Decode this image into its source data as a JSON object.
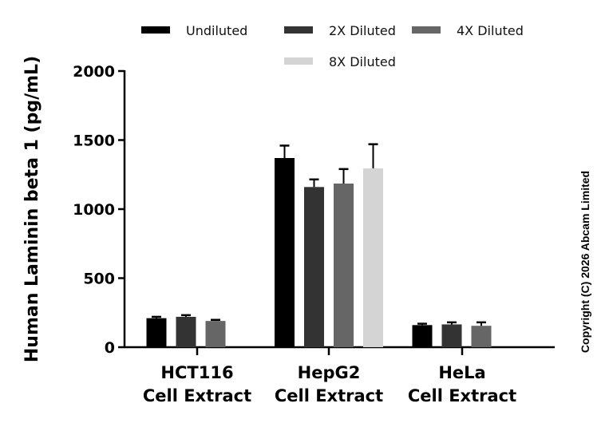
{
  "chart_data": {
    "type": "bar",
    "title": "",
    "xlabel": "",
    "ylabel": "Human Laminin beta 1 (pg/mL)",
    "ylim": [
      0,
      2000
    ],
    "yticks": [
      0,
      500,
      1000,
      1500,
      2000
    ],
    "categories": [
      "HCT116 Cell Extract",
      "HepG2 Cell Extract",
      "HeLa Cell Extract"
    ],
    "category_lines": [
      [
        "HCT116",
        "Cell Extract"
      ],
      [
        "HepG2",
        "Cell Extract"
      ],
      [
        "HeLa",
        "Cell Extract"
      ]
    ],
    "series": [
      {
        "name": "Undiluted",
        "color": "#000000",
        "values": [
          210,
          1370,
          160
        ],
        "errors": [
          10,
          90,
          10
        ]
      },
      {
        "name": "2X Diluted",
        "color": "#333333",
        "values": [
          220,
          1160,
          165
        ],
        "errors": [
          12,
          55,
          15
        ]
      },
      {
        "name": "4X Diluted",
        "color": "#666666",
        "values": [
          190,
          1185,
          155
        ],
        "errors": [
          8,
          105,
          25
        ]
      },
      {
        "name": "8X Diluted",
        "color": "#d4d4d4",
        "values": [
          null,
          1295,
          null
        ],
        "errors": [
          null,
          175,
          null
        ]
      }
    ],
    "legend_position": "top",
    "grid": false
  },
  "copyright": "Copyright (C) 2026 Abcam Limited"
}
